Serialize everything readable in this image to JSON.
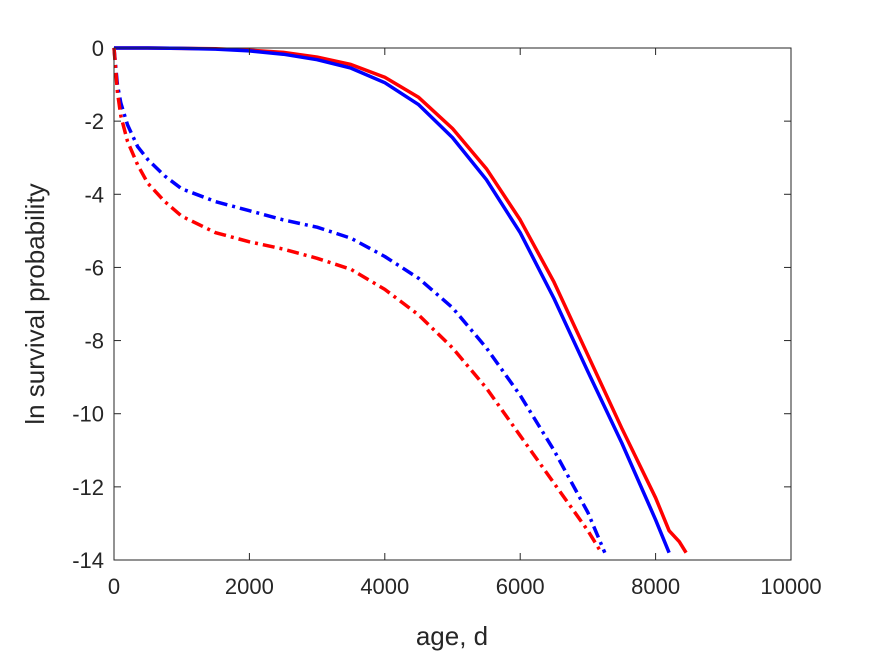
{
  "chart_data": {
    "type": "line",
    "title": "",
    "xlabel": "age, d",
    "ylabel": "ln survival probability",
    "xlim": [
      0,
      10000
    ],
    "ylim": [
      -14,
      0
    ],
    "xticks": [
      0,
      2000,
      4000,
      6000,
      8000,
      10000
    ],
    "yticks": [
      0,
      -2,
      -4,
      -6,
      -8,
      -10,
      -12,
      -14
    ],
    "xtick_labels": [
      "0",
      "2000",
      "4000",
      "6000",
      "8000",
      "10000"
    ],
    "ytick_labels": [
      "0",
      "-2",
      "-4",
      "-6",
      "-8",
      "-10",
      "-12",
      "-14"
    ],
    "grid": false,
    "legend": null,
    "series": [
      {
        "color": "#ff0000",
        "style": "solid",
        "points": [
          [
            0,
            0
          ],
          [
            500,
            0
          ],
          [
            1000,
            -0.01
          ],
          [
            1500,
            -0.02
          ],
          [
            2000,
            -0.06
          ],
          [
            2500,
            -0.12
          ],
          [
            3000,
            -0.25
          ],
          [
            3500,
            -0.45
          ],
          [
            4000,
            -0.8
          ],
          [
            4500,
            -1.35
          ],
          [
            5000,
            -2.2
          ],
          [
            5500,
            -3.3
          ],
          [
            6000,
            -4.7
          ],
          [
            6500,
            -6.4
          ],
          [
            7000,
            -8.4
          ],
          [
            7500,
            -10.4
          ],
          [
            8000,
            -12.3
          ],
          [
            8200,
            -13.2
          ],
          [
            8350,
            -13.5
          ],
          [
            8450,
            -13.8
          ]
        ]
      },
      {
        "color": "#0000ff",
        "style": "solid",
        "points": [
          [
            0,
            0
          ],
          [
            500,
            0
          ],
          [
            1000,
            -0.01
          ],
          [
            1500,
            -0.03
          ],
          [
            2000,
            -0.08
          ],
          [
            2500,
            -0.17
          ],
          [
            3000,
            -0.32
          ],
          [
            3500,
            -0.55
          ],
          [
            4000,
            -0.95
          ],
          [
            4500,
            -1.55
          ],
          [
            5000,
            -2.45
          ],
          [
            5500,
            -3.6
          ],
          [
            6000,
            -5.05
          ],
          [
            6500,
            -6.85
          ],
          [
            7000,
            -8.85
          ],
          [
            7500,
            -10.8
          ],
          [
            8000,
            -12.9
          ],
          [
            8200,
            -13.8
          ]
        ]
      },
      {
        "color": "#0000ff",
        "style": "dashdot",
        "points": [
          [
            0,
            0
          ],
          [
            50,
            -1.0
          ],
          [
            100,
            -1.5
          ],
          [
            200,
            -2.1
          ],
          [
            350,
            -2.7
          ],
          [
            500,
            -3.05
          ],
          [
            750,
            -3.5
          ],
          [
            1000,
            -3.85
          ],
          [
            1500,
            -4.2
          ],
          [
            2000,
            -4.45
          ],
          [
            2500,
            -4.7
          ],
          [
            3000,
            -4.9
          ],
          [
            3500,
            -5.2
          ],
          [
            4000,
            -5.7
          ],
          [
            4500,
            -6.3
          ],
          [
            5000,
            -7.1
          ],
          [
            5500,
            -8.2
          ],
          [
            6000,
            -9.5
          ],
          [
            6500,
            -11.0
          ],
          [
            7000,
            -12.7
          ],
          [
            7250,
            -13.8
          ]
        ]
      },
      {
        "color": "#ff0000",
        "style": "dashdot",
        "points": [
          [
            0,
            0
          ],
          [
            50,
            -1.2
          ],
          [
            100,
            -1.85
          ],
          [
            200,
            -2.55
          ],
          [
            350,
            -3.2
          ],
          [
            500,
            -3.7
          ],
          [
            750,
            -4.2
          ],
          [
            1000,
            -4.6
          ],
          [
            1500,
            -5.05
          ],
          [
            2000,
            -5.3
          ],
          [
            2500,
            -5.5
          ],
          [
            3000,
            -5.75
          ],
          [
            3500,
            -6.05
          ],
          [
            4000,
            -6.6
          ],
          [
            4500,
            -7.3
          ],
          [
            5000,
            -8.2
          ],
          [
            5500,
            -9.3
          ],
          [
            6000,
            -10.6
          ],
          [
            6500,
            -11.9
          ],
          [
            7000,
            -13.2
          ],
          [
            7200,
            -13.8
          ]
        ]
      }
    ]
  }
}
